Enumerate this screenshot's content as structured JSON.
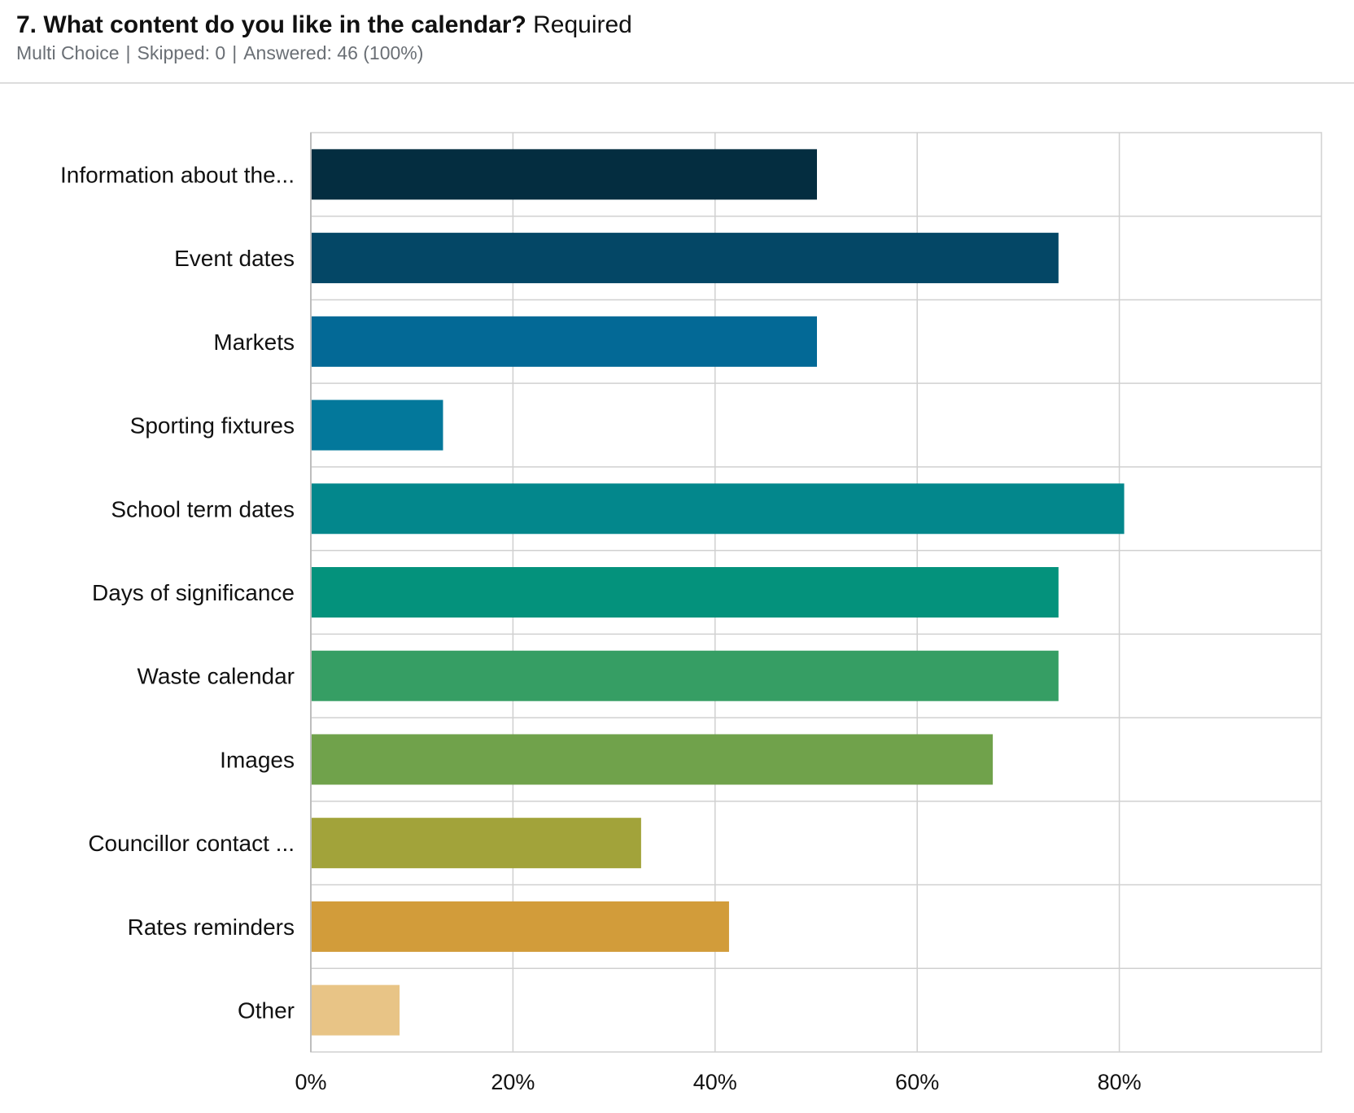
{
  "question": {
    "number": "7.",
    "text": "What content do you like in the calendar?",
    "required_label": "Required",
    "type": "Multi Choice",
    "skipped": "Skipped: 0",
    "answered": "Answered: 46 (100%)"
  },
  "chart_data": {
    "type": "bar",
    "orientation": "horizontal",
    "categories": [
      "Information about the...",
      "Event dates",
      "Markets",
      "Sporting fixtures",
      "School term dates",
      "Days of significance",
      "Waste calendar",
      "Images",
      "Councillor contact ...",
      "Rates reminders",
      "Other"
    ],
    "values": [
      50.0,
      73.9,
      50.0,
      13.0,
      80.4,
      73.9,
      73.9,
      67.4,
      32.6,
      41.3,
      8.7
    ],
    "colors": [
      "#042d40",
      "#044766",
      "#036996",
      "#03789b",
      "#03878c",
      "#04927c",
      "#369e64",
      "#70a24b",
      "#a2a33a",
      "#d29c3a",
      "#e8c486"
    ],
    "xlim": [
      0,
      100
    ],
    "x_ticks": [
      "0%",
      "20%",
      "40%",
      "60%",
      "80%"
    ],
    "x_tick_values": [
      0,
      20,
      40,
      60,
      80
    ],
    "grid": true,
    "title": "",
    "xlabel": "",
    "ylabel": ""
  }
}
